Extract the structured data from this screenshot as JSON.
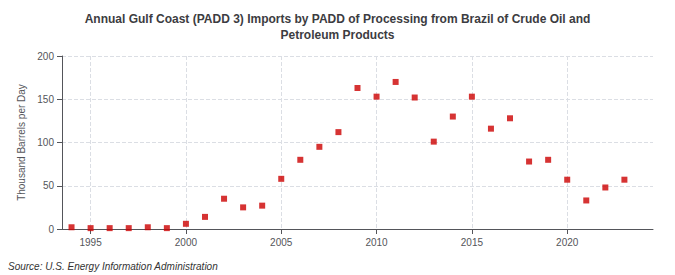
{
  "chart_data": {
    "type": "scatter",
    "title": "Annual Gulf Coast (PADD 3) Imports by PADD of Processing from Brazil of Crude Oil and\nPetroleum Products",
    "ylabel": "Thousand Barrels per Day",
    "annotations": [
      "Source: U.S. Energy Information Administration"
    ],
    "x": [
      1994,
      1995,
      1996,
      1997,
      1998,
      1999,
      2000,
      2001,
      2002,
      2003,
      2004,
      2005,
      2006,
      2007,
      2008,
      2009,
      2010,
      2011,
      2012,
      2013,
      2014,
      2015,
      2016,
      2017,
      2018,
      2019,
      2020,
      2021,
      2022,
      2023
    ],
    "values": [
      2,
      1,
      1,
      1,
      2,
      1,
      6,
      14,
      35,
      25,
      27,
      58,
      80,
      95,
      112,
      163,
      153,
      170,
      152,
      101,
      130,
      153,
      116,
      128,
      78,
      80,
      57,
      33,
      48,
      57
    ],
    "color": "#cc0000",
    "marker": "square",
    "xlim": [
      1993.5,
      2024.5
    ],
    "ylim": [
      0,
      200
    ],
    "xticks": [
      1995,
      2000,
      2005,
      2010,
      2015,
      2020
    ],
    "yticks": [
      0,
      50,
      100,
      150,
      200
    ],
    "grid": true
  }
}
